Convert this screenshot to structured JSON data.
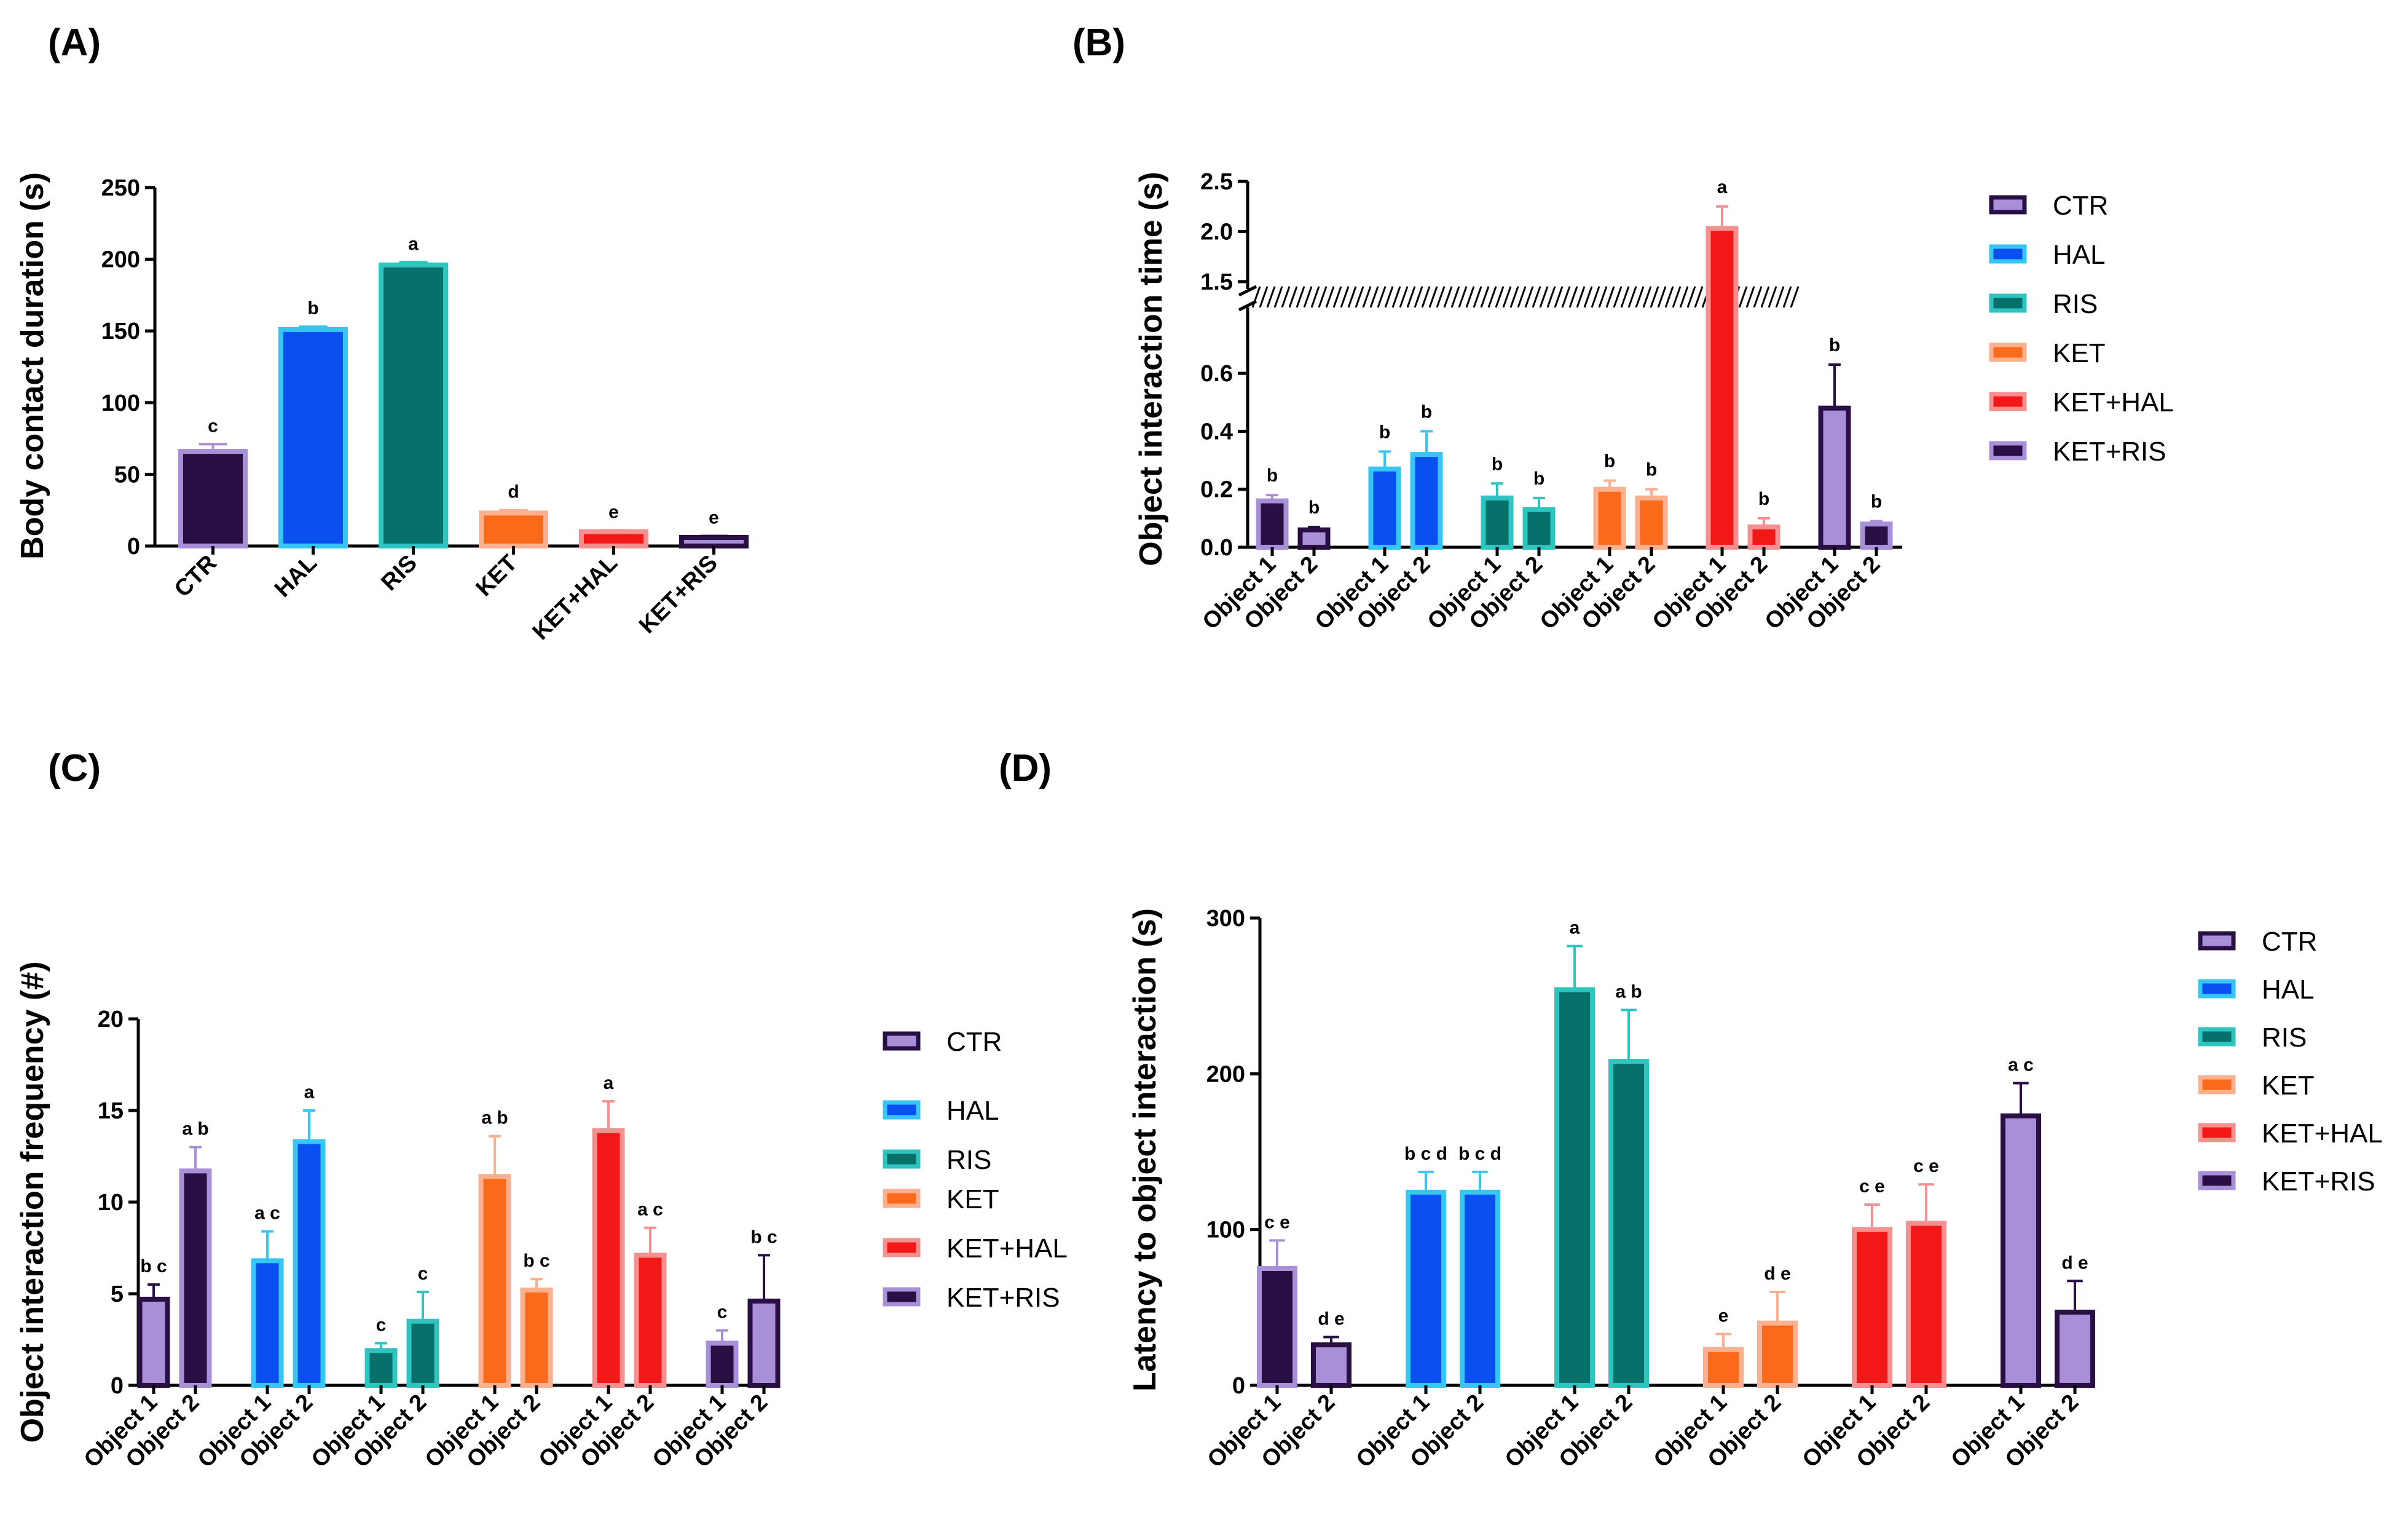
{
  "colors": {
    "CTR": {
      "fill": "#2a0f45",
      "edge": "#a890d8"
    },
    "CTR_light": {
      "fill": "#a890d8",
      "edge": "#2a0f45"
    },
    "HAL": {
      "fill": "#0a4ff0",
      "edge": "#35c6f4"
    },
    "RIS": {
      "fill": "#08706a",
      "edge": "#2ec4c0"
    },
    "KET": {
      "fill": "#fb6a1a",
      "edge": "#fbb090"
    },
    "KET+HAL": {
      "fill": "#f21818",
      "edge": "#f49090"
    },
    "KET+RIS": {
      "fill": "#a890d8",
      "edge": "#2a0f45"
    }
  },
  "chart_data": [
    {
      "panel": "(A)",
      "type": "bar",
      "ylabel": "Body contact duration (s)",
      "ylim": [
        0,
        250
      ],
      "yticks": [
        "0",
        "50",
        "100",
        "150",
        "200",
        "250"
      ],
      "categories": [
        "CTR",
        "HAL",
        "RIS",
        "KET",
        "KET+HAL",
        "KET+RIS"
      ],
      "values": [
        66,
        151,
        196,
        23,
        10,
        6
      ],
      "errors": [
        5,
        2,
        2,
        2,
        1,
        1
      ],
      "significance": [
        "c",
        "b",
        "a",
        "d",
        "e",
        "e"
      ],
      "styles": [
        "CTR",
        "HAL",
        "RIS",
        "KET",
        "KET+HAL",
        "KET+RIS"
      ]
    },
    {
      "panel": "(B)",
      "type": "bar",
      "ylabel": "Object interaction time (s)",
      "broken_axis": {
        "lower": [
          0,
          0.7
        ],
        "upper": [
          1.5,
          2.5
        ]
      },
      "yticks_lower": [
        "0.0",
        "0.2",
        "0.4",
        "0.6"
      ],
      "yticks_upper": [
        "1.5",
        "2.0",
        "2.5"
      ],
      "categories": [
        "Object 1",
        "Object 2",
        "Object 1",
        "Object 2",
        "Object 1",
        "Object 2",
        "Object 1",
        "Object 2",
        "Object 1",
        "Object 2",
        "Object 1",
        "Object 2"
      ],
      "values": [
        0.16,
        0.06,
        0.27,
        0.32,
        0.17,
        0.13,
        0.2,
        0.17,
        2.03,
        0.07,
        0.48,
        0.08
      ],
      "errors": [
        0.02,
        0.01,
        0.06,
        0.08,
        0.05,
        0.04,
        0.03,
        0.03,
        0.22,
        0.03,
        0.15,
        0.01
      ],
      "significance": [
        "b",
        "b",
        "b",
        "b",
        "b",
        "b",
        "b",
        "b",
        "a",
        "b",
        "b",
        "b"
      ],
      "styles": [
        "CTR",
        "CTR_light",
        "HAL",
        "HAL",
        "RIS",
        "RIS",
        "KET",
        "KET",
        "KET+HAL",
        "KET+HAL",
        "CTR_light",
        "CTR"
      ],
      "legend": [
        "CTR",
        "HAL",
        "RIS",
        "KET",
        "KET+HAL",
        "KET+RIS"
      ],
      "legend_styles": [
        "CTR_light",
        "HAL",
        "RIS",
        "KET",
        "KET+HAL",
        "CTR"
      ]
    },
    {
      "panel": "(C)",
      "type": "bar",
      "ylabel": "Object interaction frequency (#)",
      "ylim": [
        0,
        20
      ],
      "yticks": [
        "0",
        "5",
        "10",
        "15",
        "20"
      ],
      "categories": [
        "Object 1",
        "Object 2",
        "Object 1",
        "Object 2",
        "Object 1",
        "Object 2",
        "Object 1",
        "Object 2",
        "Object 1",
        "Object 2",
        "Object 1",
        "Object 2"
      ],
      "values": [
        4.7,
        11.7,
        6.8,
        13.3,
        1.9,
        3.5,
        11.4,
        5.2,
        13.9,
        7.1,
        2.3,
        4.6
      ],
      "errors": [
        0.8,
        1.3,
        1.6,
        1.7,
        0.4,
        1.6,
        2.2,
        0.6,
        1.6,
        1.5,
        0.7,
        2.5
      ],
      "significance": [
        "b c",
        "a b",
        "a c",
        "a",
        "c",
        "c",
        "a b",
        "b c",
        "a",
        "a c",
        "c",
        "b c"
      ],
      "styles": [
        "CTR_light",
        "CTR",
        "HAL",
        "HAL",
        "RIS",
        "RIS",
        "KET",
        "KET",
        "KET+HAL",
        "KET+HAL",
        "CTR",
        "CTR_light"
      ],
      "legend": [
        "CTR",
        "HAL",
        "RIS",
        "KET",
        "KET+HAL",
        "KET+RIS"
      ],
      "legend_styles": [
        "CTR_light",
        "HAL",
        "RIS",
        "KET",
        "KET+HAL",
        "CTR"
      ]
    },
    {
      "panel": "(D)",
      "type": "bar",
      "ylabel": "Latency to object interaction (s)",
      "ylim": [
        0,
        300
      ],
      "yticks": [
        "0",
        "100",
        "200",
        "300"
      ],
      "categories": [
        "Object 1",
        "Object 2",
        "Object 1",
        "Object 2",
        "Object 1",
        "Object 2",
        "Object 1",
        "Object 2",
        "Object 1",
        "Object 2",
        "Object 1",
        "Object 2"
      ],
      "values": [
        75,
        26,
        124,
        124,
        254,
        208,
        23,
        40,
        100,
        104,
        173,
        47
      ],
      "errors": [
        18,
        5,
        13,
        13,
        28,
        33,
        10,
        20,
        16,
        25,
        21,
        20
      ],
      "significance": [
        "c e",
        "d e",
        "b c d",
        "b c d",
        "a",
        "a b",
        "e",
        "d e",
        "c e",
        "c e",
        "a c",
        "d e"
      ],
      "styles": [
        "CTR",
        "CTR_light",
        "HAL",
        "HAL",
        "RIS",
        "RIS",
        "KET",
        "KET",
        "KET+HAL",
        "KET+HAL",
        "CTR_light",
        "CTR_light"
      ],
      "legend": [
        "CTR",
        "HAL",
        "RIS",
        "KET",
        "KET+HAL",
        "KET+RIS"
      ],
      "legend_styles": [
        "CTR_light",
        "HAL",
        "RIS",
        "KET",
        "KET+HAL",
        "CTR"
      ]
    }
  ]
}
